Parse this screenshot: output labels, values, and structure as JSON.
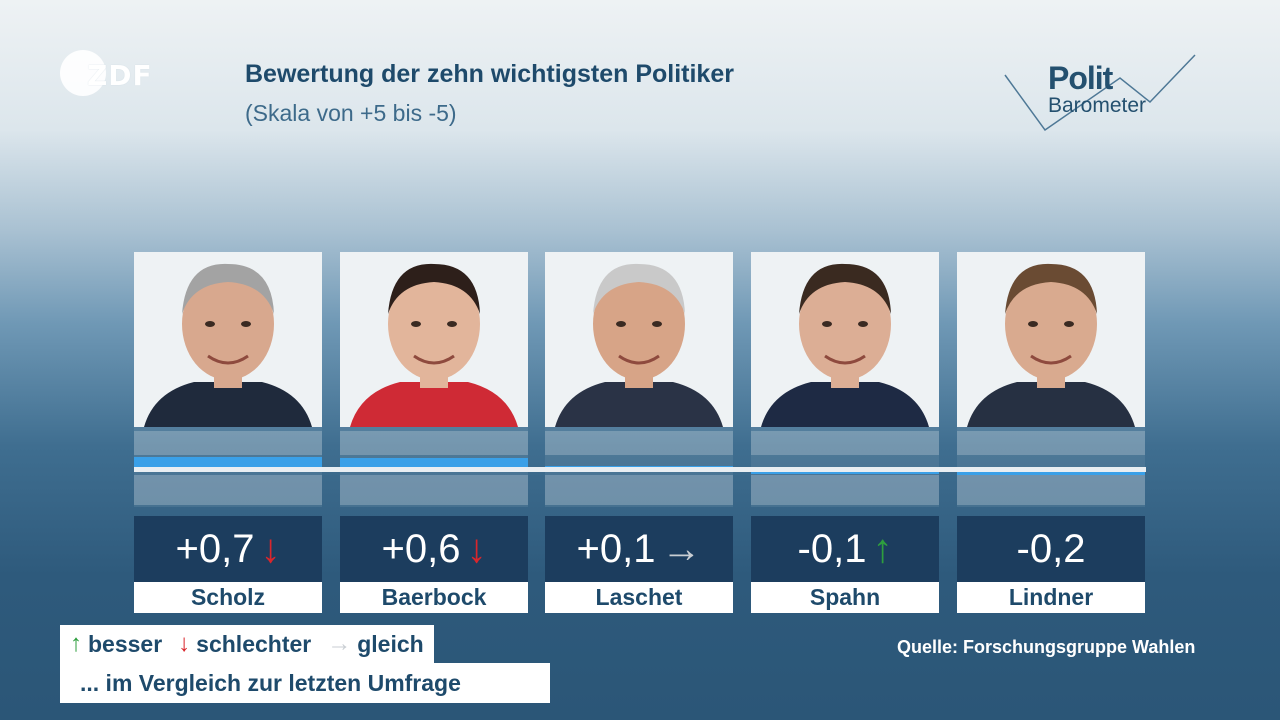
{
  "header": {
    "logo_text": "ZDF",
    "title": "Bewertung der zehn wichtigsten Politiker",
    "subtitle": "(Skala von +5 bis -5)",
    "brand_line1": "Polit",
    "brand_line2": "Barometer"
  },
  "colors": {
    "arrow_up": "#2e9e3e",
    "arrow_down": "#d9262c",
    "arrow_same": "#c9ced3",
    "bar_fill": "#3aa0e8",
    "value_box": "#1c3d5e"
  },
  "icons": {
    "up": "arrow-up-icon",
    "down": "arrow-down-icon",
    "same": "arrow-right-icon"
  },
  "chart_data": {
    "type": "bar",
    "title": "Bewertung der zehn wichtigsten Politiker",
    "subtitle": "(Skala von +5 bis -5)",
    "ylim": [
      -5,
      5
    ],
    "categories": [
      "Scholz",
      "Baerbock",
      "Laschet",
      "Spahn",
      "Lindner"
    ],
    "values": [
      0.7,
      0.6,
      0.1,
      -0.1,
      -0.2
    ],
    "value_labels": [
      "+0,7",
      "+0,6",
      "+0,1",
      "-0,1",
      "-0,2"
    ],
    "trend": [
      "down",
      "down",
      "same",
      "up",
      ""
    ],
    "trend_glyphs": [
      "↓",
      "↓",
      "→",
      "↑",
      ""
    ]
  },
  "legend": {
    "up_glyph": "↑",
    "up_label": "besser",
    "down_glyph": "↓",
    "down_label": "schlechter",
    "same_glyph": "→",
    "same_label": "gleich",
    "note": "... im Vergleich zur letzten Umfrage"
  },
  "source": "Quelle: Forschungsgruppe Wahlen"
}
